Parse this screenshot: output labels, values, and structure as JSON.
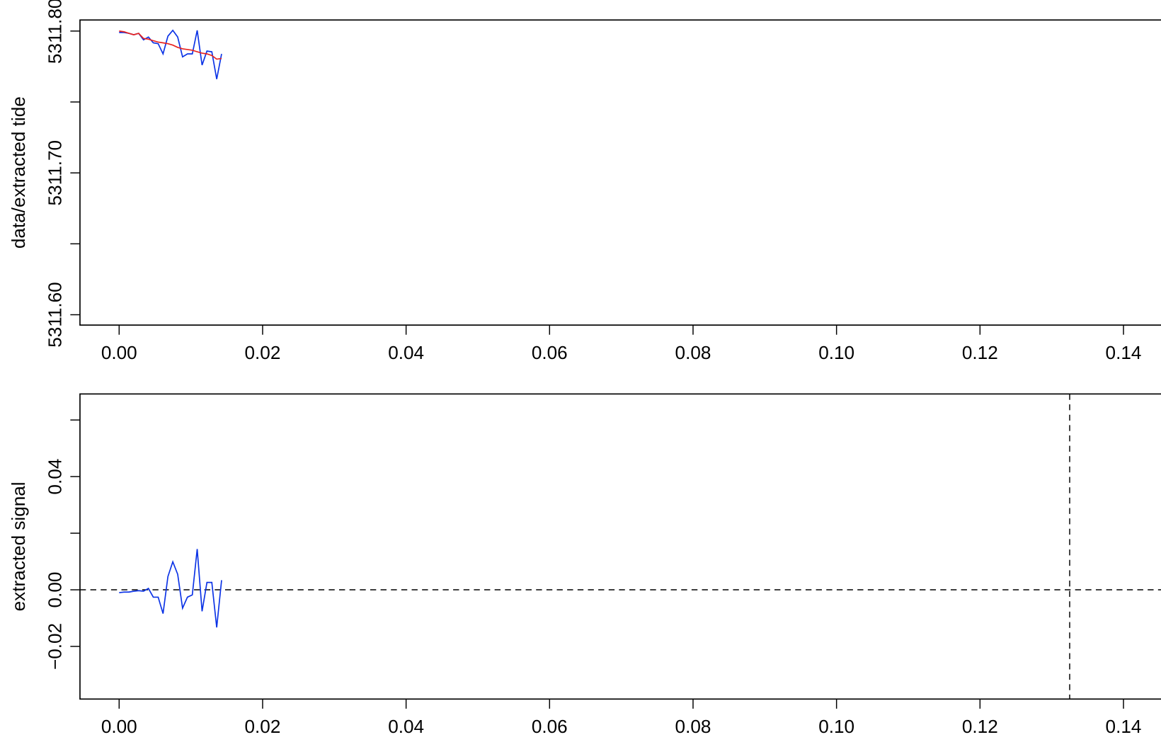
{
  "chart_data": [
    {
      "type": "line",
      "y_label": "data/extracted tide",
      "x": [
        0,
        0.00068,
        0.00136,
        0.00204,
        0.00272,
        0.0034,
        0.00408,
        0.00476,
        0.00544,
        0.00612,
        0.0068,
        0.00748,
        0.00816,
        0.00884,
        0.00952,
        0.0102,
        0.01088,
        0.01156,
        0.01224,
        0.01292,
        0.0136,
        0.01428
      ],
      "series": [
        {
          "color": "#0a32e6",
          "values": [
            5311.799,
            5311.799,
            5311.7984,
            5311.7974,
            5311.7984,
            5311.7938,
            5311.7958,
            5311.7917,
            5311.7911,
            5311.7839,
            5311.7964,
            5311.8005,
            5311.7958,
            5311.7818,
            5311.7839,
            5311.7839,
            5311.8005,
            5311.776,
            5311.7859,
            5311.7854,
            5311.7661,
            5311.7839
          ]
        },
        {
          "color": "#e8221e",
          "values": [
            5311.8,
            5311.7995,
            5311.7984,
            5311.7974,
            5311.7984,
            5311.7948,
            5311.7943,
            5311.7932,
            5311.7922,
            5311.7917,
            5311.7911,
            5311.7901,
            5311.7885,
            5311.7875,
            5311.787,
            5311.7865,
            5311.7854,
            5311.7844,
            5311.7839,
            5311.7828,
            5311.7802,
            5311.7807
          ]
        }
      ],
      "xlim": [
        -0.00546,
        0.1475
      ],
      "xticks": [
        {
          "value": 0,
          "label": "0.00"
        },
        {
          "value": 0.02,
          "label": "0.02"
        },
        {
          "value": 0.04,
          "label": "0.04"
        },
        {
          "value": 0.06,
          "label": "0.06"
        },
        {
          "value": 0.08,
          "label": "0.08"
        },
        {
          "value": 0.1,
          "label": "0.10"
        },
        {
          "value": 0.12,
          "label": "0.12"
        },
        {
          "value": 0.14,
          "label": "0.14"
        }
      ],
      "ylim": [
        5311.5927,
        5311.8078
      ],
      "yticks": [
        {
          "value": 5311.6,
          "label": "5311.60"
        },
        5311.65,
        {
          "value": 5311.7,
          "label": "5311.70"
        },
        5311.75,
        {
          "value": 5311.8,
          "label": "5311.80"
        }
      ]
    },
    {
      "type": "line",
      "y_label": "extracted signal",
      "x": [
        0,
        0.00068,
        0.00136,
        0.00204,
        0.00272,
        0.0034,
        0.00408,
        0.00476,
        0.00544,
        0.00612,
        0.0068,
        0.00748,
        0.00816,
        0.00884,
        0.00952,
        0.0102,
        0.01088,
        0.01156,
        0.01224,
        0.01292,
        0.0136,
        0.01428
      ],
      "series": [
        {
          "color": "#0a32e6",
          "values": [
            -0.001,
            -0.0008,
            -0.0008,
            -0.0005,
            -0.0003,
            -0.0005,
            0.0005,
            -0.0026,
            -0.0026,
            -0.0084,
            0.0047,
            0.0099,
            0.0055,
            -0.0065,
            -0.0026,
            -0.0018,
            0.0144,
            -0.0076,
            0.0026,
            0.0026,
            -0.0133,
            0.0034
          ]
        }
      ],
      "hline": 0,
      "vline": 0.1325,
      "xlim": [
        -0.00546,
        0.1475
      ],
      "xticks": [
        {
          "value": 0,
          "label": "0.00"
        },
        {
          "value": 0.02,
          "label": "0.02"
        },
        {
          "value": 0.04,
          "label": "0.04"
        },
        {
          "value": 0.06,
          "label": "0.06"
        },
        {
          "value": 0.08,
          "label": "0.08"
        },
        {
          "value": 0.1,
          "label": "0.10"
        },
        {
          "value": 0.12,
          "label": "0.12"
        },
        {
          "value": 0.14,
          "label": "0.14"
        }
      ],
      "ylim": [
        -0.0386,
        0.0692
      ],
      "yticks": [
        {
          "value": -0.02,
          "label": "−0.02"
        },
        {
          "value": 0,
          "label": "0.00"
        },
        0.02,
        {
          "value": 0.04,
          "label": "0.04"
        },
        0.06
      ]
    }
  ]
}
